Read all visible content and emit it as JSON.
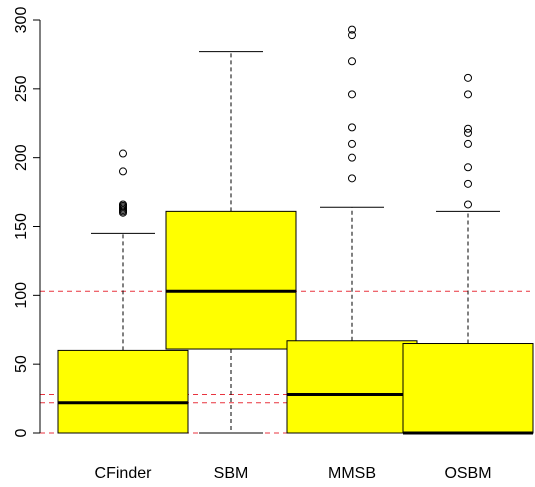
{
  "chart_data": {
    "type": "boxplot",
    "title": "",
    "xlabel": "",
    "ylabel": "",
    "ylim": [
      0,
      300
    ],
    "y_ticks": [
      0,
      50,
      100,
      150,
      200,
      250,
      300
    ],
    "y_tick_labels": [
      "0",
      "50",
      "100",
      "150",
      "200",
      "250",
      "300"
    ],
    "grid": false,
    "legend": "none",
    "box_color": "#ffff00",
    "reference_line_color": "#e8333f",
    "reference_lines": [
      0,
      22,
      28,
      103
    ],
    "categories": [
      "CFinder",
      "SBM",
      "MMSB",
      "OSBM"
    ],
    "boxes": [
      {
        "name": "CFinder",
        "whisker_low": 0,
        "q1": 0,
        "median": 22,
        "q3": 60,
        "whisker_high": 145,
        "outliers": [
          160,
          161,
          162,
          163,
          164,
          165,
          166,
          190,
          203
        ]
      },
      {
        "name": "SBM",
        "whisker_low": 0,
        "q1": 61,
        "median": 103,
        "q3": 161,
        "whisker_high": 277,
        "outliers": []
      },
      {
        "name": "MMSB",
        "whisker_low": 0,
        "q1": 0,
        "median": 28,
        "q3": 67,
        "whisker_high": 164,
        "outliers": [
          185,
          200,
          210,
          222,
          246,
          270,
          289,
          293
        ]
      },
      {
        "name": "OSBM",
        "whisker_low": 0,
        "q1": 0,
        "median": 0,
        "q3": 65,
        "whisker_high": 161,
        "outliers": [
          166,
          181,
          193,
          210,
          218,
          221,
          246,
          258
        ]
      }
    ]
  }
}
